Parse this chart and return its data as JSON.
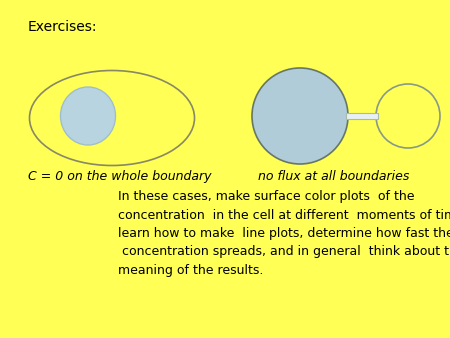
{
  "background_color": "#FFFF55",
  "title_text": "Exercises:",
  "title_fontsize": 10,
  "title_fontweight": "normal",
  "label1_text": "C = 0 on the whole boundary",
  "label1_fontsize": 9,
  "label1_style": "italic",
  "label2_text": "no flux at all boundaries",
  "label2_fontsize": 9,
  "label2_style": "italic",
  "body_text": "In these cases, make surface color plots  of the\nconcentration  in the cell at different  moments of time,\nlearn how to make  line plots, determine how fast the\n concentration spreads, and in general  think about the\nmeaning of the results.",
  "body_fontsize": 9,
  "ellipse_outer_color": "#888866",
  "ellipse_inner_color": "#b8d4e0",
  "circle_big_color": "#b0ccd8",
  "circle_big_edge": "#667766",
  "circle_small_edge": "#889988",
  "tube_fill": "#e8f0f4",
  "tube_edge": "#aabbaa"
}
